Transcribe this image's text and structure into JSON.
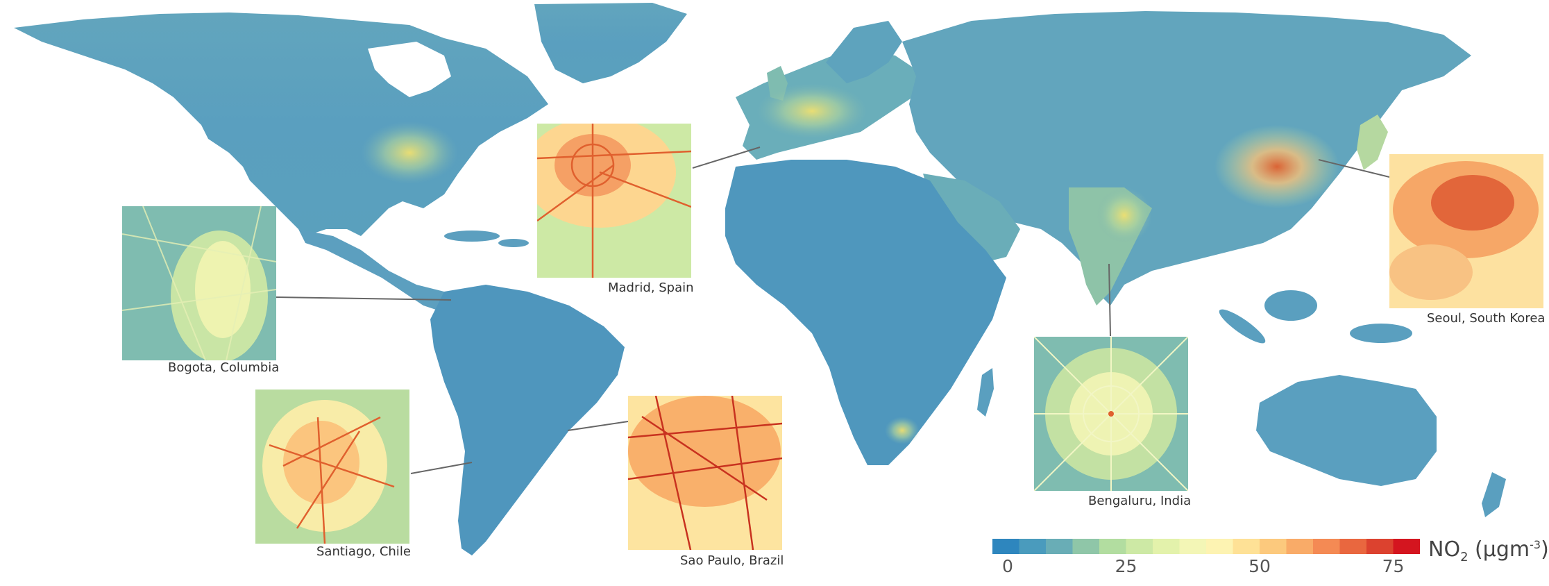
{
  "colorbar": {
    "ticks": [
      "0",
      "25",
      "50",
      "75"
    ],
    "tick_values": [
      0,
      25,
      50,
      75
    ],
    "max": 80,
    "colors": [
      "#2e86be",
      "#4a9bbd",
      "#69adb6",
      "#8fc6a8",
      "#b2dda0",
      "#cde9a5",
      "#e3f2ab",
      "#f3f6b6",
      "#fdf3b2",
      "#fee196",
      "#fcc97d",
      "#f9ab68",
      "#f48a54",
      "#e9673f",
      "#dc422f",
      "#d4151f"
    ],
    "label_main": "NO",
    "label_sub": "2",
    "label_unit_pre": " (μgm",
    "label_unit_sup": "-3",
    "label_unit_post": ")"
  },
  "insets": [
    {
      "id": "bogota",
      "caption": "Bogota, Columbia",
      "level": 0.35
    },
    {
      "id": "madrid",
      "caption": "Madrid, Spain",
      "level": 0.8
    },
    {
      "id": "santiago",
      "caption": "Santiago, Chile",
      "level": 0.65
    },
    {
      "id": "saopaulo",
      "caption": "Sao Paulo, Brazil",
      "level": 0.85
    },
    {
      "id": "bengaluru",
      "caption": "Bengaluru, India",
      "level": 0.3
    },
    {
      "id": "seoul",
      "caption": "Seoul, South Korea",
      "level": 0.9
    }
  ],
  "colors": {
    "ocean": "#ffffff",
    "land_base": "#5a9fc0",
    "land_mid": "#7fb8b2",
    "land_light": "#b9dba0",
    "urban": "#f0e58a",
    "hot": "#e0602e",
    "leader": "#666666"
  }
}
